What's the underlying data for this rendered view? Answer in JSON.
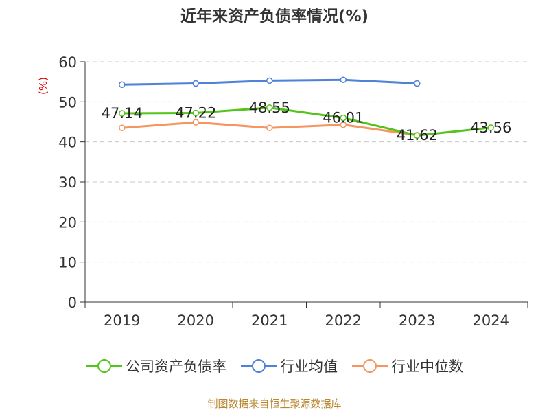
{
  "title": "近年来资产负债率情况(%)",
  "source": "制图数据来自恒生聚源数据库",
  "chart_data": {
    "type": "line",
    "title": "近年来资产负债率情况(%)",
    "xlabel": "",
    "ylabel": "(%)",
    "ylim": [
      0,
      60
    ],
    "yticks": [
      0,
      10,
      20,
      30,
      40,
      50,
      60
    ],
    "categories": [
      "2019",
      "2020",
      "2021",
      "2022",
      "2023",
      "2024"
    ],
    "grid": true,
    "legend_position": "bottom",
    "series": [
      {
        "name": "公司资产负债率",
        "color": "#52c41a",
        "values": [
          47.14,
          47.22,
          48.55,
          46.01,
          41.62,
          43.56
        ],
        "labels": [
          "47.14",
          "47.22",
          "48.55",
          "46.01",
          "41.62",
          "43.56"
        ]
      },
      {
        "name": "行业均值",
        "color": "#4f81d9",
        "values": [
          54.3,
          54.6,
          55.3,
          55.5,
          54.6,
          null
        ]
      },
      {
        "name": "行业中位数",
        "color": "#f59560",
        "values": [
          43.5,
          44.9,
          43.5,
          44.3,
          41.7,
          null
        ]
      }
    ]
  }
}
